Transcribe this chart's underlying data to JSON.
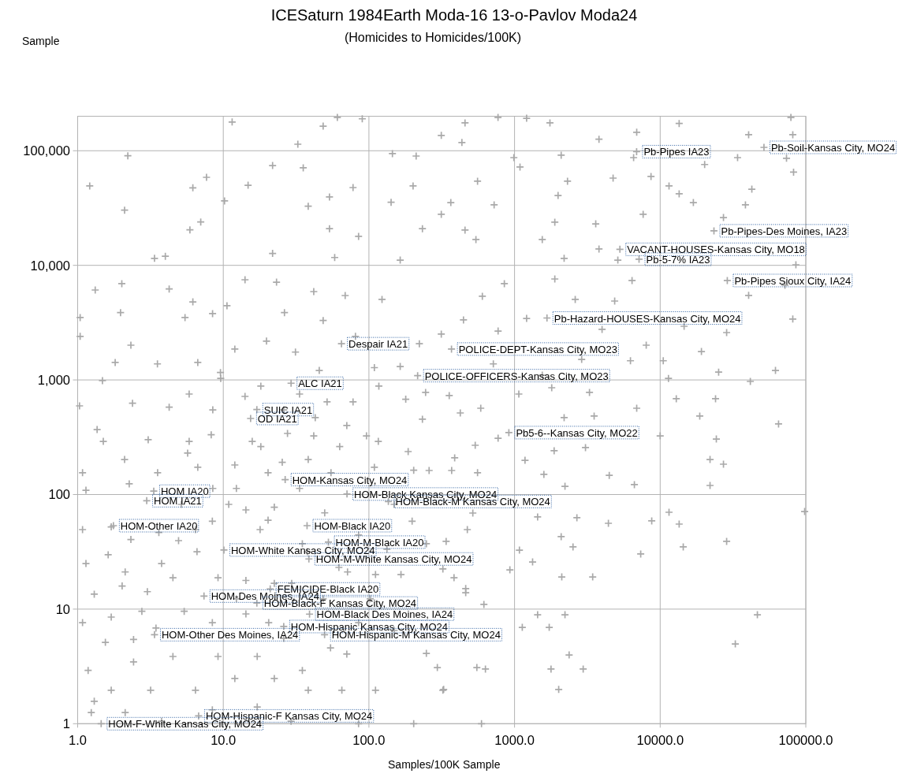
{
  "chart_data": {
    "type": "scatter",
    "title": "ICESaturn 1984Earth Moda-16 13-o-Pavlov Moda24",
    "subtitle": "(Homicides to Homicides/100K)",
    "xlabel": "Samples/100K Sample",
    "color": "#a9a9a9",
    "marker": "cross",
    "log": "xy",
    "grid": true,
    "xlim": [
      1,
      100000
    ],
    "ylim": [
      1,
      200000
    ],
    "xticks": [
      {
        "value": 1,
        "label": "1.0"
      },
      {
        "value": 10,
        "label": "10.0"
      },
      {
        "value": 100,
        "label": "100.0"
      },
      {
        "value": 1000,
        "label": "1000.0"
      },
      {
        "value": 10000,
        "label": "10000.0"
      },
      {
        "value": 100000,
        "label": "100000.0"
      }
    ],
    "yticks": [
      1,
      10,
      100,
      {
        "value": 1000,
        "label": "1,000"
      },
      {
        "value": 10000,
        "label": "10,000"
      },
      {
        "value": 100000,
        "label": "100,000"
      }
    ],
    "x": [
      10.2,
      14.8,
      21.8,
      32.5,
      48.5,
      60.7,
      5.9,
      7,
      3.37,
      2.01,
      2.21,
      1.21,
      2.1,
      6.18,
      7.67,
      11.5,
      90,
      145,
      53.6,
      77.8,
      35.4,
      38.3,
      53.6,
      84.9,
      142,
      21.8,
      58.2,
      164,
      4,
      1.32,
      4.25,
      6.18,
      8.44,
      1.97,
      1.04,
      1.04,
      2.32,
      1.81,
      3.53,
      6.68,
      10.6,
      14.1,
      23.2,
      41.8,
      68.7,
      123,
      26.3,
      48.5,
      80.8,
      19.8,
      12,
      31.3,
      45.6,
      109,
      164,
      9.56,
      5.46,
      1.03,
      1.48,
      2.38,
      4.25,
      1.36,
      1.5,
      3.05,
      5.69,
      8.26,
      18.1,
      27.6,
      41.8,
      63,
      96.2,
      186,
      77.8,
      179,
      117,
      51.6,
      25.4,
      38.3,
      109,
      203,
      12,
      6.68,
      2.1,
      1.08,
      14.1,
      18.1,
      9.6,
      770,
      457,
      314,
      435,
      1750,
      3800,
      6900,
      13500,
      40500,
      79000,
      81400,
      34000,
      73700,
      82400,
      20200,
      16900,
      42600,
      38500,
      27200,
      11500,
      8650,
      4750,
      6570,
      7640,
      3610,
      1890,
      1550,
      3800,
      5120,
      2190,
      1990,
      2310,
      1090,
      557,
      365,
      233,
      314,
      457,
      543,
      724,
      989,
      2090,
      211,
      201,
      1210,
      13500,
      85500,
      81400,
      61900,
      41600,
      25200,
      19200,
      14600,
      28600,
      10500,
      11400,
      40500,
      71900,
      4870,
      6410,
      2610,
      1210,
      1890,
      851,
      601,
      446,
      314,
      222,
      771,
      3990,
      8020,
      6250,
      2890,
      1550,
      1800,
      1070,
      586,
      356,
      245,
      233,
      3270,
      6900,
      3520,
      2190,
      12900,
      24000,
      65000,
      18700,
      715,
      424,
      10000,
      24300,
      22000,
      27200,
      22000,
      6650,
      4470,
      3070,
      1870,
      1590,
      2220,
      1180,
      771,
      537,
      388,
      557,
      11500,
      13500,
      28600,
      14400,
      98200,
      8750,
      4410,
      2680,
      1440,
      2090,
      2520,
      7350,
      1330,
      929,
      2110,
      3440,
      517,
      474,
      339,
      384,
      462,
      616,
      1440,
      2220,
      46500,
      1130,
      1730,
      32800,
      2370,
      1780,
      2960,
      631,
      2010,
      326,
      593,
      203,
      1080,
      1.14,
      2.26,
      1.08,
      1.7,
      2.32,
      3.61,
      1.14,
      1.62,
      2.12,
      3.77,
      4.93,
      6.44,
      8.41,
      14.3,
      17.9,
      22.4,
      34.9,
      49.7,
      84.9,
      133,
      198,
      259,
      248,
      322,
      166,
      111,
      71.3,
      22.4,
      14.3,
      9.2,
      4.51,
      3.01,
      2.02,
      1.3,
      1.08,
      1.7,
      2.76,
      3.45,
      5.39,
      8.41,
      14.3,
      20.5,
      84.9,
      248,
      295,
      551,
      322,
      111,
      65.2,
      38.3,
      22.4,
      12,
      6.44,
      3.17,
      1.7,
      1.18,
      1.3,
      2.42,
      4.51,
      9.2,
      17.1,
      34.9,
      54.5,
      2.42,
      1.55,
      17.1,
      8.41,
      3.77,
      2.12,
      1.24,
      29.2,
      84.9,
      370,
      462,
      12.3,
      20.3,
      33.4,
      54.9,
      15.8,
      26,
      42.8,
      70.5,
      33.4,
      10.9,
      20.3,
      37.8,
      62.2,
      29.5,
      48.5,
      12.3,
      6.6,
      8.47,
      5.15,
      3.54,
      5.83,
      8.47,
      5.83,
      116,
      149,
      102,
      149,
      70.5,
      26,
      6890,
      51600,
      23400,
      5290,
      7160,
      28900,
      1670,
      369,
      216,
      914,
      64.8,
      29.2,
      17,
      15.4,
      26.6,
      3.33,
      2.98,
      1.76,
      70.7,
      136,
      37.6,
      52.7,
      10.1,
      38.7,
      21,
      7.37,
      17,
      39.1,
      26,
      3.37,
      49.6,
      6.77,
      1.45
    ],
    "values": [
      36500,
      50000,
      74300,
      114000,
      164000,
      195000,
      20400,
      23900,
      11500,
      6920,
      90400,
      49300,
      30300,
      47500,
      58600,
      178000,
      190000,
      94400,
      39500,
      47700,
      71000,
      32800,
      20900,
      17900,
      35500,
      12700,
      11700,
      11100,
      12000,
      6090,
      6220,
      4800,
      3790,
      3870,
      3500,
      2400,
      2010,
      1420,
      1380,
      1420,
      4440,
      7480,
      7130,
      5900,
      5450,
      5040,
      3870,
      3300,
      2400,
      2180,
      1860,
      1750,
      1210,
      1280,
      1310,
      1160,
      3500,
      594,
      986,
      626,
      578,
      369,
      291,
      301,
      230,
      332,
      262,
      341,
      325,
      262,
      325,
      237,
      643,
      678,
      883,
      643,
      191,
      202,
      173,
      163,
      181,
      173,
      202,
      155,
      718,
      883,
      1030,
      195000,
      175000,
      136000,
      118000,
      175000,
      126000,
      145000,
      173000,
      138000,
      195000,
      138000,
      87100,
      86000,
      65100,
      75800,
      35300,
      46200,
      33700,
      26100,
      49300,
      59600,
      57700,
      87100,
      27900,
      23000,
      23800,
      16800,
      13900,
      11100,
      11500,
      40700,
      54200,
      72100,
      54200,
      35300,
      20900,
      27900,
      20300,
      16800,
      33700,
      87100,
      91400,
      89900,
      49300,
      192000,
      42100,
      10100,
      3400,
      1210,
      970,
      1170,
      1770,
      2940,
      2590,
      1470,
      1030,
      5470,
      6700,
      4880,
      7370,
      5040,
      3440,
      7600,
      6920,
      5370,
      3340,
      2510,
      2070,
      2670,
      2760,
      2010,
      1470,
      1510,
      1100,
      855,
      753,
      566,
      730,
      778,
      454,
      778,
      566,
      484,
      469,
      685,
      685,
      413,
      484,
      1380,
      515,
      325,
      305,
      202,
      184,
      120,
      122,
      147,
      257,
      241,
      150,
      118,
      199,
      310,
      269,
      209,
      155,
      70,
      55.2,
      39,
      34.9,
      71.1,
      58.9,
      56.1,
      62.7,
      63.7,
      42.9,
      34.9,
      30.3,
      25.8,
      22,
      19.1,
      19.1,
      68.9,
      49.4,
      39,
      18.8,
      13.9,
      11,
      8.93,
      8.93,
      8.93,
      6.93,
      6.93,
      4.97,
      3.98,
      3,
      3,
      3,
      1.99,
      1.99,
      1,
      1,
      32.7,
      109,
      124,
      49.4,
      52.2,
      40.5,
      46.6,
      25,
      29.8,
      21.1,
      25,
      39.6,
      49.4,
      58.5,
      73.4,
      49.4,
      77.5,
      37.2,
      69.2,
      44.3,
      33.3,
      58.5,
      162,
      37.2,
      22.4,
      20,
      20,
      21.1,
      16.8,
      17.8,
      18.8,
      18.8,
      14.2,
      15.9,
      13.5,
      7.62,
      8.52,
      9.57,
      6.83,
      9.57,
      7.62,
      9.08,
      7.62,
      7.62,
      4.11,
      3.09,
      3.09,
      1.96,
      1.96,
      1.96,
      1.96,
      2.48,
      2.48,
      1.96,
      1.96,
      1.96,
      2.92,
      1.57,
      3.46,
      3.86,
      3.86,
      3.86,
      2.92,
      4.59,
      5.43,
      5.13,
      1.4,
      1.32,
      1.05,
      1.25,
      1.25,
      1.05,
      1,
      162,
      15.1,
      113,
      155,
      113,
      155,
      291,
      548,
      469,
      400,
      753,
      82,
      59.7,
      31.7,
      23.1,
      16.8,
      12.3,
      12.3,
      31.7,
      113,
      82,
      155,
      291,
      548,
      753,
      291,
      82,
      12.3,
      6.51,
      4.05,
      5.56,
      98200,
      107000,
      20000,
      13800,
      11300,
      7370,
      3470,
      1860,
      1090,
      347,
      2070,
      936,
      551,
      461,
      135,
      107,
      88.3,
      53.5,
      101,
      86.9,
      53.5,
      38.4,
      32.8,
      27.4,
      15,
      13,
      11.3,
      9.04,
      7.05,
      5.98,
      5.98,
      1.17,
      1
    ],
    "annotations": [
      "Sample",
      {
        "text": "Pb-Pipes IA23",
        "x": 6890,
        "y": 98200
      },
      {
        "text": "Pb-Soil-Kansas City, MO24",
        "x": 51600,
        "y": 107000
      },
      {
        "text": "Pb-Pipes-Des Moines, IA23",
        "x": 23400,
        "y": 20000
      },
      {
        "text": "VACANT-HOUSES-Kansas City, MO18",
        "x": 5290,
        "y": 13800
      },
      {
        "text": "Pb-5-7% IA23",
        "x": 7160,
        "y": 11300
      },
      {
        "text": "Pb-Pipes Sioux City, IA24",
        "x": 28900,
        "y": 7370
      },
      {
        "text": "Pb-Hazard-HOUSES-Kansas City, MO24",
        "x": 1670,
        "y": 3470
      },
      {
        "text": "POLICE-DEPT-Kansas City, MO23",
        "x": 369,
        "y": 1860
      },
      {
        "text": "POLICE-OFFICERS-Kansas City, MO23",
        "x": 216,
        "y": 1090
      },
      {
        "text": "Pb5-6--Kansas City, MO22",
        "x": 914,
        "y": 347
      },
      {
        "text": "Despair IA21",
        "x": 64.8,
        "y": 2070
      },
      {
        "text": "ALC IA21",
        "x": 29.2,
        "y": 936
      },
      {
        "text": "SUIC IA21",
        "x": 17,
        "y": 551
      },
      {
        "text": "OD IA21",
        "x": 15.4,
        "y": 461
      },
      {
        "text": "HOM-Kansas City, MO24",
        "x": 26.6,
        "y": 135
      },
      {
        "text": "HOM IA20",
        "x": 3.33,
        "y": 107
      },
      {
        "text": "HOM IA21",
        "x": 2.98,
        "y": 88.3
      },
      {
        "text": "HOM-Other IA20",
        "x": 1.76,
        "y": 53.5
      },
      {
        "text": "HOM-Black Kansas City, MO24",
        "x": 70.7,
        "y": 101
      },
      {
        "text": "HOM-Black-M Kansas City, MO24",
        "x": 136,
        "y": 86.9
      },
      {
        "text": "HOM-Black IA20",
        "x": 37.6,
        "y": 53.5
      },
      {
        "text": "HOM-M-Black IA20",
        "x": 52.7,
        "y": 38.4
      },
      {
        "text": "HOM-White Kansas City, MO24",
        "x": 10.1,
        "y": 32.8
      },
      {
        "text": "HOM-M-White Kansas City, MO24",
        "x": 38.7,
        "y": 27.4
      },
      {
        "text": "FEMICIDE-Black IA20",
        "x": 21,
        "y": 15
      },
      {
        "text": "HOM-Des Moines, IA24",
        "x": 7.37,
        "y": 13
      },
      {
        "text": "HOM-Black-F Kansas City, MO24",
        "x": 17,
        "y": 11.3
      },
      {
        "text": "HOM-Black Des Moines, IA24",
        "x": 39.1,
        "y": 9.04
      },
      {
        "text": "HOM-Hispanic Kansas City, MO24",
        "x": 26,
        "y": 7.05
      },
      {
        "text": "HOM-Other Des Moines, IA24",
        "x": 3.37,
        "y": 5.98
      },
      {
        "text": "HOM-Hispanic-M Kansas City, MO24",
        "x": 49.6,
        "y": 5.98
      },
      {
        "text": "HOM-Hispanic-F Kansas City, MO24",
        "x": 6.77,
        "y": 1.17
      },
      {
        "text": "HOM-F-White Kansas City, MO24",
        "x": 1.45,
        "y": 1
      }
    ]
  }
}
